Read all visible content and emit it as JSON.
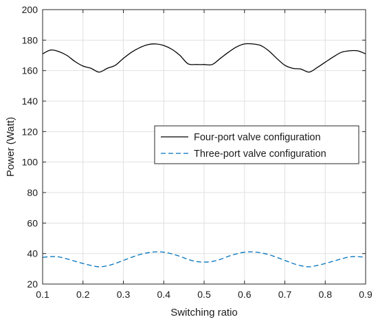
{
  "chart_data": {
    "type": "line",
    "title": "",
    "xlabel": "Switching ratio",
    "ylabel": "Power (Watt)",
    "xlim": [
      0.1,
      0.9
    ],
    "ylim": [
      20,
      200
    ],
    "xticks": [
      "0.1",
      "0.2",
      "0.3",
      "0.4",
      "0.5",
      "0.6",
      "0.7",
      "0.8",
      "0.9"
    ],
    "yticks": [
      "20",
      "40",
      "60",
      "80",
      "100",
      "120",
      "140",
      "160",
      "180",
      "200"
    ],
    "grid": true,
    "legend_position": "center-right",
    "series": [
      {
        "name": "Four-port valve configuration",
        "color": "#000000",
        "style": "solid",
        "x": [
          0.1,
          0.12,
          0.14,
          0.16,
          0.18,
          0.2,
          0.22,
          0.24,
          0.26,
          0.28,
          0.3,
          0.32,
          0.34,
          0.36,
          0.38,
          0.4,
          0.42,
          0.44,
          0.46,
          0.48,
          0.5,
          0.52,
          0.54,
          0.56,
          0.58,
          0.6,
          0.62,
          0.64,
          0.66,
          0.68,
          0.7,
          0.72,
          0.74,
          0.76,
          0.78,
          0.8,
          0.82,
          0.84,
          0.86,
          0.88,
          0.9
        ],
        "y": [
          171,
          173.5,
          172.5,
          170,
          166,
          163,
          161.5,
          159,
          161.5,
          163.5,
          168,
          172,
          175,
          177,
          177.5,
          176.5,
          174,
          170,
          164.5,
          164,
          164,
          164,
          168,
          172,
          175.5,
          177.5,
          177.5,
          176.5,
          173,
          168,
          163.5,
          161.5,
          161,
          159,
          162,
          165.5,
          169,
          172,
          173,
          173,
          171
        ]
      },
      {
        "name": "Three-port valve configuration",
        "color": "#0072bd",
        "style": "dashed",
        "x": [
          0.1,
          0.12,
          0.14,
          0.16,
          0.18,
          0.2,
          0.22,
          0.24,
          0.26,
          0.28,
          0.3,
          0.32,
          0.34,
          0.36,
          0.38,
          0.4,
          0.42,
          0.44,
          0.46,
          0.48,
          0.5,
          0.52,
          0.54,
          0.56,
          0.58,
          0.6,
          0.62,
          0.64,
          0.66,
          0.68,
          0.7,
          0.72,
          0.74,
          0.76,
          0.78,
          0.8,
          0.82,
          0.84,
          0.86,
          0.88,
          0.9
        ],
        "y": [
          37.5,
          38,
          37.8,
          36.5,
          35,
          33.5,
          32.2,
          31.3,
          32,
          33.5,
          35.5,
          37.5,
          39.3,
          40.5,
          41.1,
          40.9,
          39.8,
          38.2,
          36.2,
          34.8,
          34.4,
          34.8,
          36.2,
          38.2,
          39.8,
          40.9,
          41.1,
          40.5,
          39.3,
          37.5,
          35.5,
          33.5,
          32,
          31.3,
          32.2,
          33.5,
          35,
          36.5,
          37.8,
          38,
          37.5
        ]
      }
    ]
  }
}
